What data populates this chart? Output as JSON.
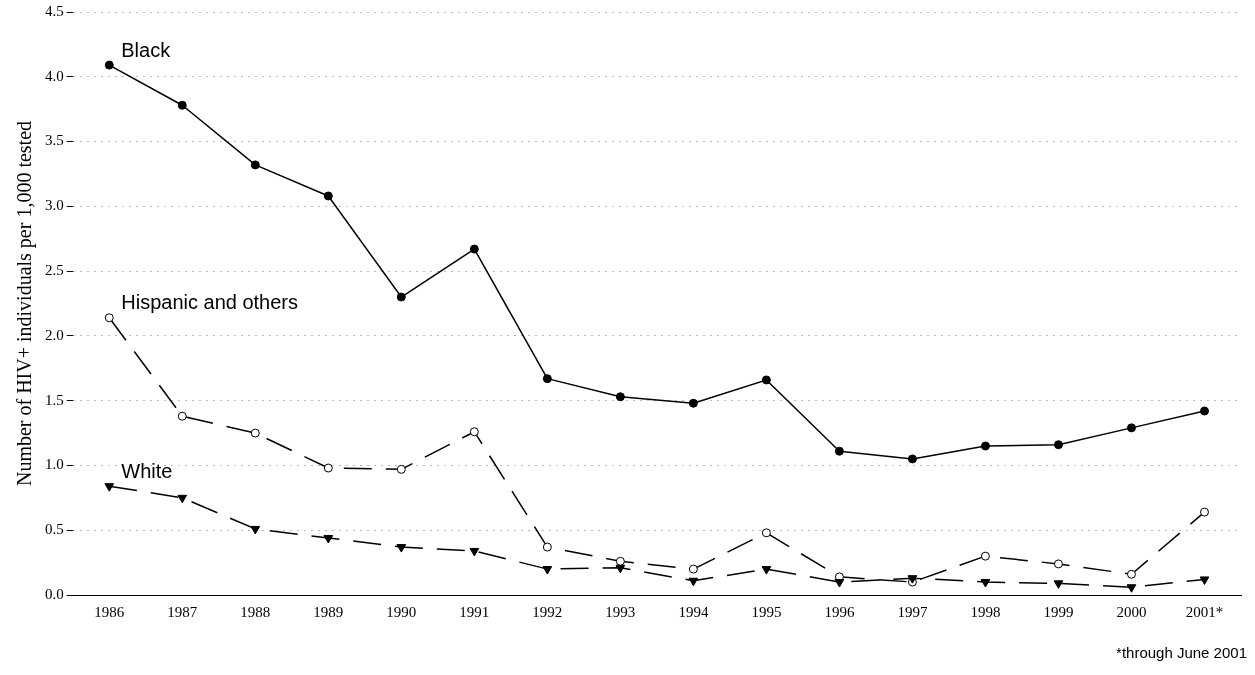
{
  "chart_data": {
    "type": "line",
    "ylabel": "Number of HIV+ individuals per 1,000 tested",
    "categories": [
      "1986",
      "1987",
      "1988",
      "1989",
      "1990",
      "1991",
      "1992",
      "1993",
      "1994",
      "1995",
      "1996",
      "1997",
      "1998",
      "1999",
      "2000",
      "2001*"
    ],
    "series": [
      {
        "name": "Black",
        "color": "#000000",
        "marker": "circle",
        "line_style": "solid",
        "values": [
          4.09,
          3.78,
          3.32,
          3.08,
          2.3,
          2.67,
          1.67,
          1.53,
          1.48,
          1.66,
          1.11,
          1.05,
          1.15,
          1.16,
          1.29,
          1.42
        ]
      },
      {
        "name": "Hispanic and others",
        "color": "#000000",
        "marker": "circle",
        "line_style": "dashed",
        "values": [
          2.14,
          1.38,
          1.25,
          0.98,
          0.97,
          1.26,
          0.37,
          0.26,
          0.2,
          0.48,
          0.14,
          0.1,
          0.3,
          0.24,
          0.16,
          0.64
        ]
      },
      {
        "name": "White",
        "color": "#000000",
        "marker": "triangle",
        "line_style": "dashed",
        "values": [
          0.84,
          0.75,
          0.51,
          0.44,
          0.37,
          0.34,
          0.2,
          0.21,
          0.11,
          0.2,
          0.1,
          0.13,
          0.1,
          0.09,
          0.06,
          0.12
        ]
      }
    ],
    "ylim": [
      0,
      4.5
    ],
    "yticks": [
      {
        "value": 0,
        "label": "0.0"
      },
      {
        "value": 0.5,
        "label": "0.5"
      },
      {
        "value": 1,
        "label": "1.0"
      },
      {
        "value": 1.5,
        "label": "1.5"
      },
      {
        "value": 2,
        "label": "2.0"
      },
      {
        "value": 2.5,
        "label": "2.5"
      },
      {
        "value": 3,
        "label": "3.0"
      },
      {
        "value": 3.5,
        "label": "3.5"
      },
      {
        "value": 4,
        "label": "4.0"
      },
      {
        "value": 4.5,
        "label": "4.5"
      }
    ],
    "grid": "y",
    "legend": false,
    "annotations": [
      "*through June 2001"
    ]
  }
}
